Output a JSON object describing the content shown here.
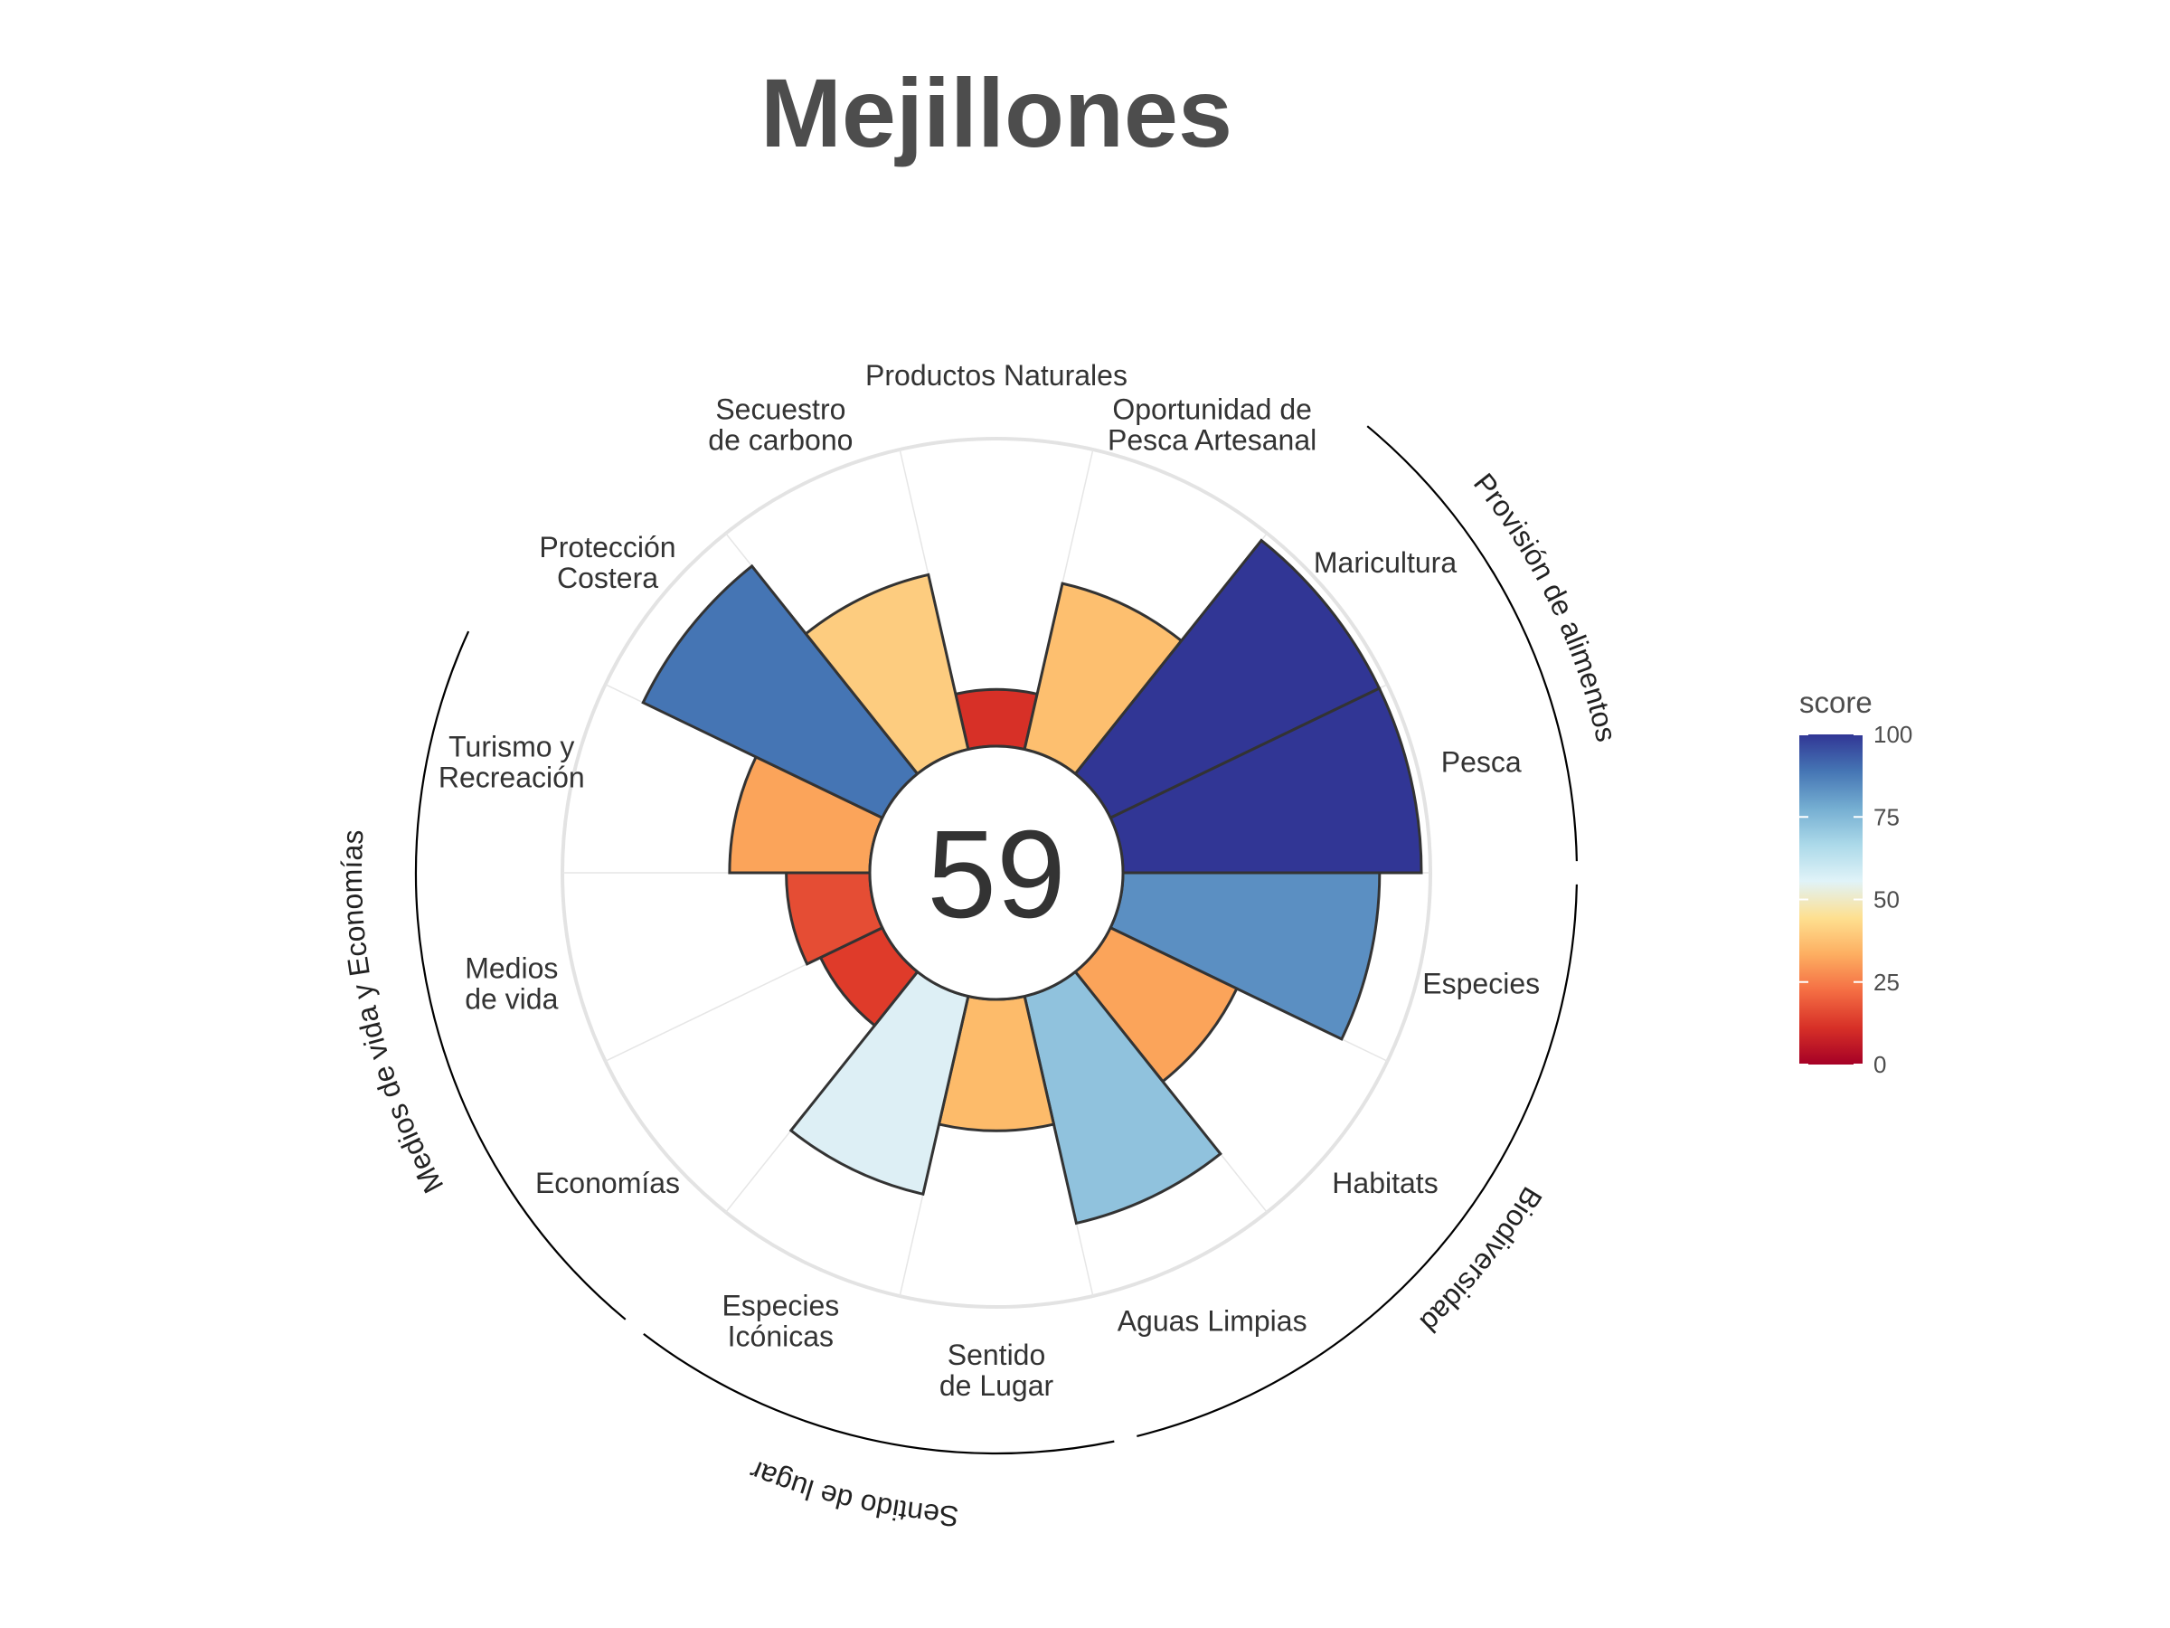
{
  "chart_data": {
    "type": "polar-bar",
    "title": "Mejillones",
    "overall_score": "59",
    "rmax": 100,
    "categories": [
      {
        "label": [
          "Productos Naturales"
        ],
        "value": 19,
        "color": "#d73027"
      },
      {
        "label": [
          "Oportunidad de",
          "Pesca Artesanal"
        ],
        "value": 57,
        "color": "#fdbf6f"
      },
      {
        "label": [
          "Maricultura"
        ],
        "value": 100,
        "color": "#313695"
      },
      {
        "label": [
          "Pesca"
        ],
        "value": 100,
        "color": "#313695"
      },
      {
        "label": [
          "Especies"
        ],
        "value": 86,
        "color": "#5b8fc2"
      },
      {
        "label": [
          "Habitats"
        ],
        "value": 47,
        "color": "#fba45a"
      },
      {
        "label": [
          "Aguas Limpias"
        ],
        "value": 78,
        "color": "#90c2dd"
      },
      {
        "label": [
          "Sentido",
          "de Lugar"
        ],
        "value": 44,
        "color": "#fdbb6a"
      },
      {
        "label": [
          "Especies",
          "Icónicas"
        ],
        "value": 68,
        "color": "#ddeff5"
      },
      {
        "label": [
          "Economías"
        ],
        "value": 23,
        "color": "#df3b2a"
      },
      {
        "label": [
          "Medios",
          "de vida"
        ],
        "value": 28,
        "color": "#e54d34"
      },
      {
        "label": [
          "Turismo y",
          "Recreación"
        ],
        "value": 47,
        "color": "#fba45a"
      },
      {
        "label": [
          "Protección",
          "Costera"
        ],
        "value": 89,
        "color": "#4575b4"
      },
      {
        "label": [
          "Secuestro",
          "de carbono"
        ],
        "value": 60,
        "color": "#fdcc7f"
      }
    ],
    "groups": [
      {
        "label": "Provisión de alimentos"
      },
      {
        "label": "Biodiversidad"
      },
      {
        "label": "Sentido de lugar"
      },
      {
        "label": "Medios de vida y Economías"
      }
    ],
    "legend": {
      "title": "score",
      "ticks": [
        "100",
        "75",
        "50",
        "25",
        "0"
      ],
      "colors": [
        "#313695",
        "#4575b4",
        "#74add1",
        "#abd9e9",
        "#e0f3f8",
        "#fee090",
        "#fdae61",
        "#f46d43",
        "#d73027",
        "#a50026"
      ]
    }
  }
}
